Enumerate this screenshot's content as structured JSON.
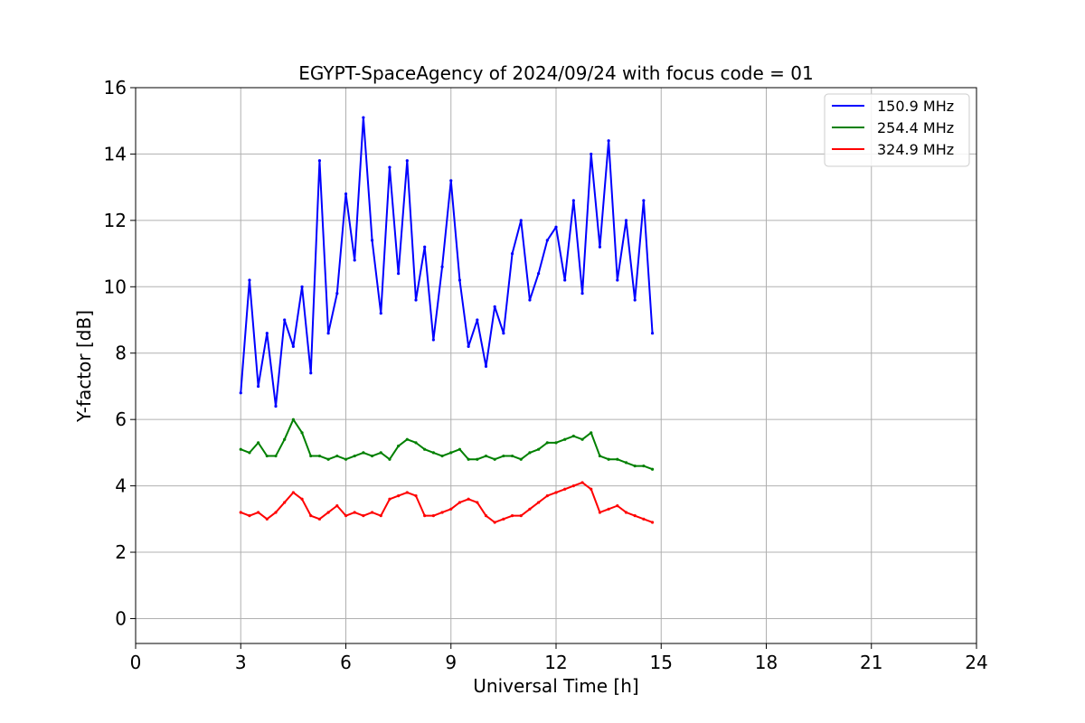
{
  "chart_data": {
    "type": "line",
    "title": "EGYPT-SpaceAgency of 2024/09/24 with focus code = 01",
    "xlabel": "Universal Time [h]",
    "ylabel": "Y-factor [dB]",
    "xlim": [
      0,
      24
    ],
    "ylim": [
      -0.75,
      16
    ],
    "xticks": [
      0,
      3,
      6,
      9,
      12,
      15,
      18,
      21,
      24
    ],
    "yticks": [
      0,
      2,
      4,
      6,
      8,
      10,
      12,
      14,
      16
    ],
    "grid": true,
    "legend_position": "top-right",
    "x": [
      3.0,
      3.25,
      3.5,
      3.75,
      4.0,
      4.25,
      4.5,
      4.75,
      5.0,
      5.25,
      5.5,
      5.75,
      6.0,
      6.25,
      6.5,
      6.75,
      7.0,
      7.25,
      7.5,
      7.75,
      8.0,
      8.25,
      8.5,
      8.75,
      9.0,
      9.25,
      9.5,
      9.75,
      10.0,
      10.25,
      10.5,
      10.75,
      11.0,
      11.25,
      11.5,
      11.75,
      12.0,
      12.25,
      12.5,
      12.75,
      13.0,
      13.25,
      13.5,
      13.75,
      14.0,
      14.25,
      14.5,
      14.75
    ],
    "series": [
      {
        "name": "150.9 MHz",
        "color": "#0000ff",
        "values": [
          6.8,
          10.2,
          7.0,
          8.6,
          6.4,
          9.0,
          8.2,
          10.0,
          7.4,
          13.8,
          8.6,
          9.8,
          12.8,
          10.8,
          15.1,
          11.4,
          9.2,
          13.6,
          10.4,
          13.8,
          9.6,
          11.2,
          8.4,
          10.6,
          13.2,
          10.2,
          8.2,
          9.0,
          7.6,
          9.4,
          8.6,
          11.0,
          12.0,
          9.6,
          10.4,
          11.4,
          11.8,
          10.2,
          12.6,
          9.8,
          14.0,
          11.2,
          14.4,
          10.2,
          12.0,
          9.6,
          12.6,
          8.6
        ]
      },
      {
        "name": "254.4 MHz",
        "color": "#008000",
        "values": [
          5.1,
          5.0,
          5.3,
          4.9,
          4.9,
          5.4,
          6.0,
          5.6,
          4.9,
          4.9,
          4.8,
          4.9,
          4.8,
          4.9,
          5.0,
          4.9,
          5.0,
          4.8,
          5.2,
          5.4,
          5.3,
          5.1,
          5.0,
          4.9,
          5.0,
          5.1,
          4.8,
          4.8,
          4.9,
          4.8,
          4.9,
          4.9,
          4.8,
          5.0,
          5.1,
          5.3,
          5.3,
          5.4,
          5.5,
          5.4,
          5.6,
          4.9,
          4.8,
          4.8,
          4.7,
          4.6,
          4.6,
          4.5
        ]
      },
      {
        "name": "324.9 MHz",
        "color": "#ff0000",
        "values": [
          3.2,
          3.1,
          3.2,
          3.0,
          3.2,
          3.5,
          3.8,
          3.6,
          3.1,
          3.0,
          3.2,
          3.4,
          3.1,
          3.2,
          3.1,
          3.2,
          3.1,
          3.6,
          3.7,
          3.8,
          3.7,
          3.1,
          3.1,
          3.2,
          3.3,
          3.5,
          3.6,
          3.5,
          3.1,
          2.9,
          3.0,
          3.1,
          3.1,
          3.3,
          3.5,
          3.7,
          3.8,
          3.9,
          4.0,
          4.1,
          3.9,
          3.2,
          3.3,
          3.4,
          3.2,
          3.1,
          3.0,
          2.9
        ]
      }
    ]
  }
}
